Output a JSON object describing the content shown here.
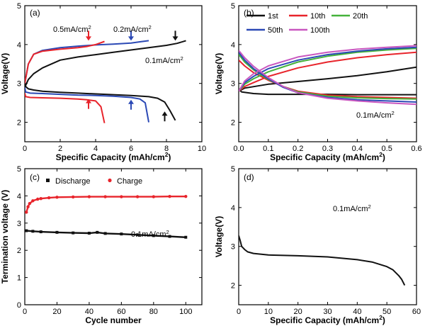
{
  "colors": {
    "black": "#111111",
    "red": "#e8242b",
    "blue": "#2b49b5",
    "green": "#45b23b",
    "purple": "#c957c0"
  },
  "chart_data": [
    {
      "panel": "a",
      "type": "line",
      "panel_label": "(a)",
      "xlabel": "Specific Capacity (mAh/cm²)",
      "ylabel": "Voltage(V)",
      "xlim": [
        0,
        10
      ],
      "ylim": [
        1.5,
        5
      ],
      "xticks": [
        0,
        2,
        4,
        6,
        8,
        10
      ],
      "yticks": [
        2,
        3,
        4,
        5
      ],
      "annotations": [
        {
          "text": "0.5mA/cm²",
          "color": "#111111"
        },
        {
          "text": "0.2mA/cm²",
          "color": "#111111"
        },
        {
          "text": "0.1mA/cm²",
          "color": "#111111"
        }
      ],
      "arrows": [
        {
          "x": 3.6,
          "y": 4.1,
          "dir": "down",
          "color": "#e8242b"
        },
        {
          "x": 6.0,
          "y": 4.1,
          "dir": "down",
          "color": "#2b49b5"
        },
        {
          "x": 8.5,
          "y": 4.1,
          "dir": "down",
          "color": "#111111"
        },
        {
          "x": 3.6,
          "y": 2.6,
          "dir": "up",
          "color": "#e8242b"
        },
        {
          "x": 6.0,
          "y": 2.58,
          "dir": "up",
          "color": "#2b49b5"
        },
        {
          "x": 7.9,
          "y": 2.28,
          "dir": "up",
          "color": "#111111"
        }
      ],
      "series": [
        {
          "color": "#111111",
          "x": [
            0,
            0.2,
            0.5,
            1,
            1.5,
            2,
            3,
            4,
            5,
            6,
            7,
            8,
            8.6,
            9.1
          ],
          "y": [
            2.9,
            3.1,
            3.25,
            3.4,
            3.5,
            3.6,
            3.68,
            3.74,
            3.8,
            3.86,
            3.92,
            3.98,
            4.03,
            4.1
          ]
        },
        {
          "color": "#111111",
          "x": [
            0,
            0.05,
            0.2,
            0.5,
            1,
            2,
            3,
            4,
            5,
            6,
            7,
            7.5,
            7.9,
            8.2,
            8.5
          ],
          "y": [
            3.05,
            2.92,
            2.86,
            2.83,
            2.8,
            2.77,
            2.75,
            2.73,
            2.71,
            2.69,
            2.66,
            2.62,
            2.52,
            2.3,
            2.05
          ]
        },
        {
          "color": "#2b49b5",
          "x": [
            0,
            0.2,
            0.5,
            1,
            2,
            3,
            4,
            5,
            6,
            6.5,
            7.0
          ],
          "y": [
            3.0,
            3.5,
            3.75,
            3.85,
            3.92,
            3.96,
            3.99,
            4.01,
            4.04,
            4.07,
            4.1
          ]
        },
        {
          "color": "#2b49b5",
          "x": [
            0,
            0.05,
            0.3,
            1,
            2,
            3,
            4,
            5,
            6,
            6.5,
            6.8,
            7.0
          ],
          "y": [
            2.9,
            2.78,
            2.75,
            2.74,
            2.72,
            2.7,
            2.69,
            2.67,
            2.64,
            2.6,
            2.5,
            2.0
          ]
        },
        {
          "color": "#e8242b",
          "x": [
            0,
            0.2,
            0.5,
            1,
            2,
            3,
            3.5,
            4.0,
            4.5
          ],
          "y": [
            3.0,
            3.5,
            3.75,
            3.83,
            3.88,
            3.92,
            3.95,
            4.0,
            4.08
          ]
        },
        {
          "color": "#e8242b",
          "x": [
            0,
            0.05,
            0.3,
            1,
            2,
            3,
            3.5,
            4.0,
            4.3,
            4.5
          ],
          "y": [
            2.75,
            2.66,
            2.64,
            2.63,
            2.62,
            2.6,
            2.58,
            2.55,
            2.4,
            1.98
          ]
        }
      ]
    },
    {
      "panel": "b",
      "type": "line",
      "panel_label": "(b)",
      "xlabel": "Specific Capacity (mAh/cm²)",
      "ylabel": "Voltage(V)",
      "xlim": [
        0,
        0.6
      ],
      "ylim": [
        1.5,
        5
      ],
      "xticks": [
        0.0,
        0.1,
        0.2,
        0.3,
        0.4,
        0.5,
        0.6
      ],
      "yticks": [
        2,
        3,
        4,
        5
      ],
      "annotations": [
        {
          "text": "0.1mA/cm²",
          "color": "#111111"
        }
      ],
      "legend": [
        "1st",
        "10th",
        "20th",
        "50th",
        "100th"
      ],
      "series": [
        {
          "name": "1st",
          "color": "#111111",
          "x": [
            0,
            0.02,
            0.1,
            0.2,
            0.3,
            0.4,
            0.5,
            0.6
          ],
          "y": [
            2.8,
            2.88,
            2.98,
            3.05,
            3.12,
            3.2,
            3.3,
            3.42
          ]
        },
        {
          "name": "1st",
          "color": "#111111",
          "x": [
            0,
            0.01,
            0.05,
            0.1,
            0.2,
            0.3,
            0.4,
            0.5,
            0.6
          ],
          "y": [
            2.85,
            2.78,
            2.74,
            2.72,
            2.72,
            2.72,
            2.71,
            2.71,
            2.71
          ]
        },
        {
          "name": "10th",
          "color": "#e8242b",
          "x": [
            0,
            0.02,
            0.05,
            0.1,
            0.2,
            0.3,
            0.4,
            0.5,
            0.6
          ],
          "y": [
            2.8,
            2.92,
            3.02,
            3.18,
            3.4,
            3.55,
            3.66,
            3.74,
            3.8
          ]
        },
        {
          "name": "10th",
          "color": "#e8242b",
          "x": [
            0,
            0.02,
            0.05,
            0.1,
            0.15,
            0.2,
            0.3,
            0.4,
            0.5,
            0.6
          ],
          "y": [
            3.6,
            3.45,
            3.28,
            3.08,
            2.92,
            2.8,
            2.7,
            2.66,
            2.64,
            2.62
          ]
        },
        {
          "name": "20th",
          "color": "#45b23b",
          "x": [
            0,
            0.02,
            0.05,
            0.1,
            0.2,
            0.3,
            0.4,
            0.5,
            0.6
          ],
          "y": [
            2.8,
            2.98,
            3.12,
            3.3,
            3.55,
            3.7,
            3.8,
            3.86,
            3.9
          ]
        },
        {
          "name": "20th",
          "color": "#45b23b",
          "x": [
            0,
            0.02,
            0.05,
            0.1,
            0.15,
            0.2,
            0.3,
            0.4,
            0.5,
            0.6
          ],
          "y": [
            3.75,
            3.55,
            3.35,
            3.1,
            2.92,
            2.78,
            2.67,
            2.63,
            2.61,
            2.6
          ]
        },
        {
          "name": "50th",
          "color": "#2b49b5",
          "x": [
            0,
            0.02,
            0.05,
            0.1,
            0.2,
            0.3,
            0.4,
            0.5,
            0.6
          ],
          "y": [
            2.8,
            3.02,
            3.18,
            3.38,
            3.6,
            3.74,
            3.83,
            3.89,
            3.93
          ]
        },
        {
          "name": "50th",
          "color": "#2b49b5",
          "x": [
            0,
            0.02,
            0.05,
            0.1,
            0.15,
            0.2,
            0.3,
            0.4,
            0.5,
            0.6
          ],
          "y": [
            3.8,
            3.6,
            3.38,
            3.12,
            2.9,
            2.76,
            2.64,
            2.58,
            2.55,
            2.52
          ]
        },
        {
          "name": "100th",
          "color": "#c957c0",
          "x": [
            0,
            0.02,
            0.05,
            0.1,
            0.2,
            0.3,
            0.4,
            0.5,
            0.6
          ],
          "y": [
            2.8,
            3.06,
            3.25,
            3.45,
            3.68,
            3.8,
            3.88,
            3.93,
            3.97
          ]
        },
        {
          "name": "100th",
          "color": "#c957c0",
          "x": [
            0,
            0.02,
            0.05,
            0.1,
            0.15,
            0.2,
            0.3,
            0.4,
            0.5,
            0.6
          ],
          "y": [
            3.85,
            3.66,
            3.44,
            3.15,
            2.92,
            2.76,
            2.62,
            2.55,
            2.5,
            2.46
          ]
        }
      ]
    },
    {
      "panel": "c",
      "type": "scatter",
      "panel_label": "(c)",
      "xlabel": "Cycle number",
      "ylabel": "Termination voltage (V)",
      "xlim": [
        0,
        110
      ],
      "ylim": [
        0,
        5
      ],
      "xticks": [
        0,
        20,
        40,
        60,
        80,
        100
      ],
      "yticks": [
        0,
        1,
        2,
        3,
        4,
        5
      ],
      "annotations": [
        {
          "text": "0.1mA/cm²",
          "color": "#111111"
        }
      ],
      "legend": [
        "Discharge",
        "Charge"
      ],
      "series": [
        {
          "name": "Discharge",
          "color": "#111111",
          "x": [
            1,
            5,
            10,
            20,
            30,
            40,
            45,
            50,
            60,
            70,
            80,
            90,
            100
          ],
          "y": [
            2.72,
            2.7,
            2.68,
            2.66,
            2.64,
            2.63,
            2.66,
            2.62,
            2.6,
            2.57,
            2.54,
            2.51,
            2.48
          ]
        },
        {
          "name": "Charge",
          "color": "#e8242b",
          "x": [
            1,
            2,
            3,
            5,
            8,
            10,
            15,
            20,
            30,
            40,
            50,
            60,
            70,
            80,
            90,
            100
          ],
          "y": [
            3.4,
            3.6,
            3.72,
            3.82,
            3.88,
            3.9,
            3.93,
            3.95,
            3.96,
            3.97,
            3.97,
            3.97,
            3.97,
            3.97,
            3.98,
            3.98
          ]
        }
      ]
    },
    {
      "panel": "d",
      "type": "line",
      "panel_label": "(d)",
      "xlabel": "Specific Capacity (mAh/cm²)",
      "ylabel": "Voltage(V)",
      "xlim": [
        0,
        60
      ],
      "ylim": [
        1.5,
        5
      ],
      "xticks": [
        0,
        10,
        20,
        30,
        40,
        50,
        60
      ],
      "yticks": [
        2,
        3,
        4,
        5
      ],
      "annotations": [
        {
          "text": "0.1mA/cm²",
          "color": "#111111"
        }
      ],
      "series": [
        {
          "color": "#111111",
          "x": [
            0,
            0.5,
            1,
            2,
            3,
            5,
            10,
            20,
            30,
            40,
            45,
            50,
            52,
            54,
            55,
            56
          ],
          "y": [
            3.28,
            3.15,
            3.0,
            2.92,
            2.86,
            2.82,
            2.78,
            2.76,
            2.73,
            2.66,
            2.6,
            2.48,
            2.4,
            2.25,
            2.15,
            2.0
          ]
        }
      ]
    }
  ]
}
